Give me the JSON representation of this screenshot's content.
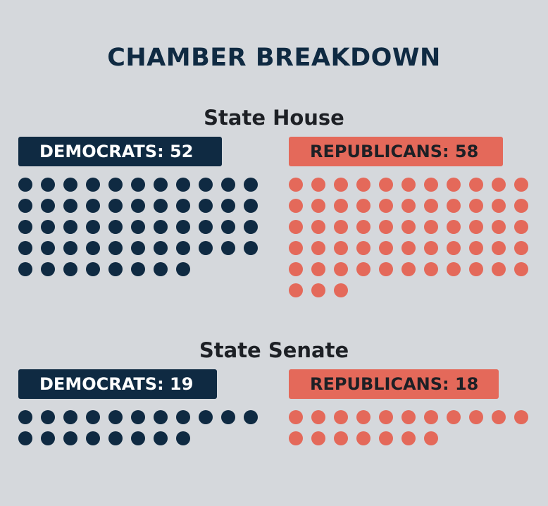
{
  "title": "CHAMBER BREAKDOWN",
  "colors": {
    "democrats": "#0f2a42",
    "republicans": "#e4695a",
    "background": "#d5d8dc"
  },
  "chart_data": [
    {
      "type": "waffle",
      "title": "State House",
      "series": [
        {
          "name": "DEMOCRATS: 52",
          "party": "democrats",
          "value": 52
        },
        {
          "name": "REPUBLICANS: 58",
          "party": "republicans",
          "value": 58
        }
      ]
    },
    {
      "type": "waffle",
      "title": "State Senate",
      "series": [
        {
          "name": "DEMOCRATS: 19",
          "party": "democrats",
          "value": 19
        },
        {
          "name": "REPUBLICANS: 18",
          "party": "republicans",
          "value": 18
        }
      ]
    }
  ]
}
